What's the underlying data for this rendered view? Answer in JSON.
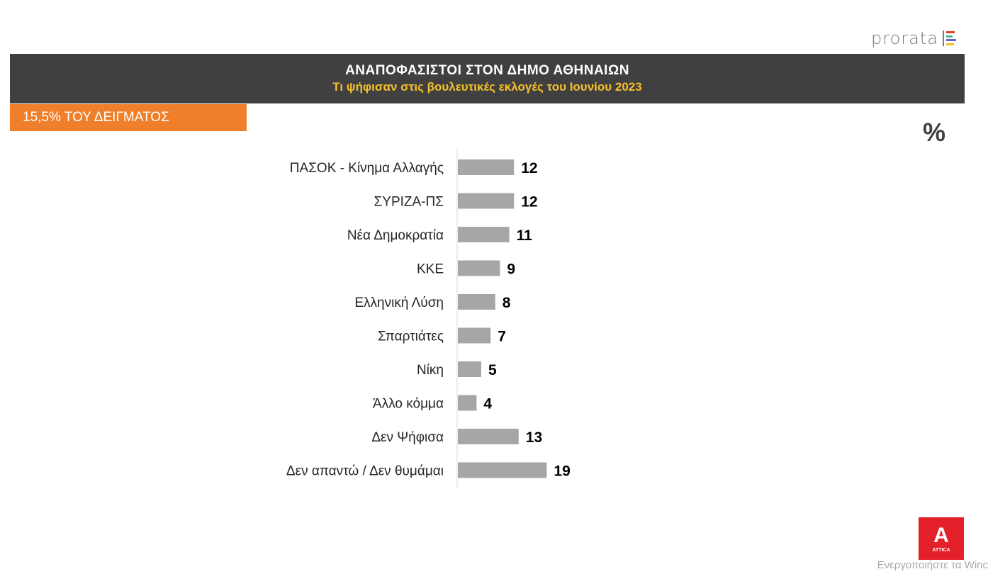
{
  "brand": {
    "logo_text": "prorata",
    "logo_colors": [
      "#e4402a",
      "#3bb78f",
      "#6c5fc7",
      "#f5c02a"
    ]
  },
  "header": {
    "title": "ΑΝΑΠΟΦΑΣΙΣΤΟΙ ΣΤΟΝ ΔΗΜΟ ΑΘΗΝΑΙΩΝ",
    "subtitle": "Τι ψήφισαν στις βουλευτικές εκλογές του Ιουνίου 2023"
  },
  "badge": {
    "label": "15,5% ΤΟΥ ΔΕΙΓΜΑΤΟΣ"
  },
  "unit_label": "%",
  "chart_data": {
    "type": "bar",
    "orientation": "horizontal",
    "categories": [
      "ΠΑΣΟΚ - Κίνημα Αλλαγής",
      "ΣΥΡΙΖΑ-ΠΣ",
      "Νέα Δημοκρατία",
      "ΚΚΕ",
      "Ελληνική Λύση",
      "Σπαρτιάτες",
      "Νίκη",
      "Άλλο κόμμα",
      "Δεν Ψήφισα",
      "Δεν απαντώ / Δεν θυμάμαι"
    ],
    "values": [
      12,
      12,
      11,
      9,
      8,
      7,
      5,
      4,
      13,
      19
    ],
    "bar_color": "#a6a6a6",
    "grid": false,
    "data_labels": true
  },
  "corner_logo": {
    "glyph": "A",
    "text": "ATTICA",
    "color": "#e4202a"
  },
  "watermark": "Ενεργοποιήστε τα Winc",
  "colors": {
    "title_bar": "#404040",
    "subtitle": "#f5c02a",
    "badge": "#f07f2c"
  }
}
